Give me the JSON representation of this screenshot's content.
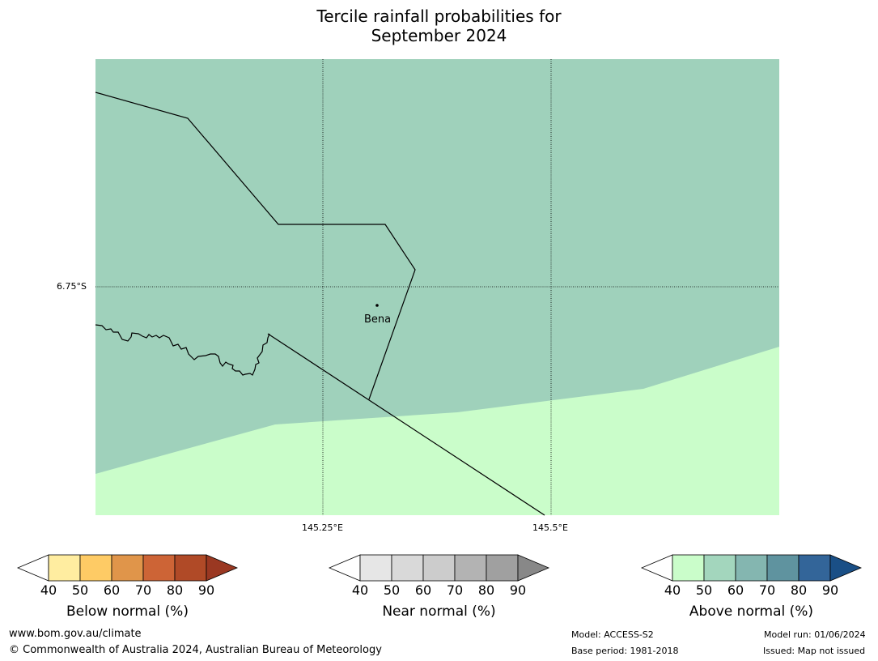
{
  "title_line1": "Tercile rainfall probabilities for",
  "title_line2": "September 2024",
  "map": {
    "lat_label": "6.75°S",
    "lon_labels": [
      "145.25°E",
      "145.5°E"
    ],
    "place": "Bena",
    "colors": {
      "above_50_60": "#9fd1bb",
      "above_40_50": "#cafdca"
    }
  },
  "colorbars": [
    {
      "label": "Below normal (%)",
      "ticks": [
        "40",
        "50",
        "60",
        "70",
        "80",
        "90"
      ],
      "colors": [
        "#ffffff",
        "#ffeda0",
        "#fecb65",
        "#e0954a",
        "#cd6436",
        "#b04a27",
        "#9a3822"
      ]
    },
    {
      "label": "Near normal (%)",
      "ticks": [
        "40",
        "50",
        "60",
        "70",
        "80",
        "90"
      ],
      "colors": [
        "#ffffff",
        "#e6e6e6",
        "#d9d9d9",
        "#cccccc",
        "#b3b3b3",
        "#a0a0a0",
        "#888888"
      ]
    },
    {
      "label": "Above normal (%)",
      "ticks": [
        "40",
        "50",
        "60",
        "70",
        "80",
        "90"
      ],
      "colors": [
        "#ffffff",
        "#cafdca",
        "#a3d6bd",
        "#84b6b0",
        "#5f939f",
        "#336599",
        "#1a4f86"
      ]
    }
  ],
  "footer": {
    "url": "www.bom.gov.au/climate",
    "copyright": "© Commonwealth of Australia 2024, Australian Bureau of Meteorology",
    "model": "Model: ACCESS-S2",
    "base_period": "Base period: 1981-2018",
    "model_run": "Model run: 01/06/2024",
    "issued": "Issued: Map not issued"
  }
}
